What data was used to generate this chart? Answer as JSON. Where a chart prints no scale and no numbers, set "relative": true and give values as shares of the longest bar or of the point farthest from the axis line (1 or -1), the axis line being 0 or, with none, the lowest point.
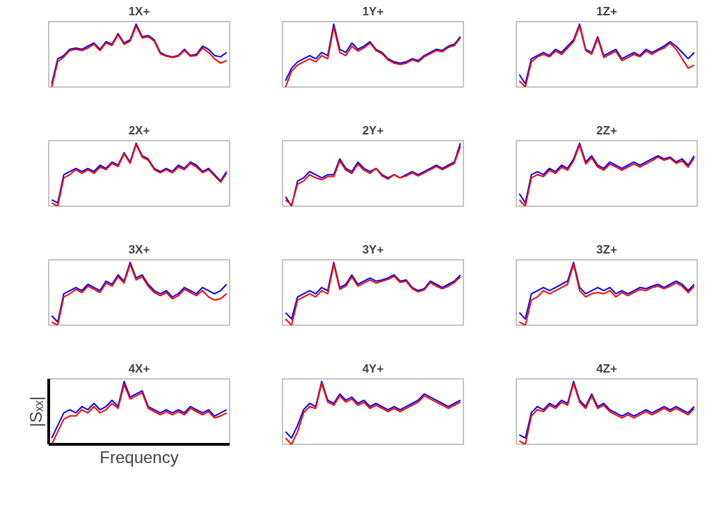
{
  "chart_data": [
    {
      "type": "line",
      "title": "1X+",
      "relative": true,
      "categories": [
        null,
        null,
        null,
        null,
        null,
        null,
        null,
        null,
        null,
        null,
        null,
        null,
        null,
        null,
        null,
        null,
        null,
        null,
        null,
        null,
        null,
        null,
        null,
        null,
        null,
        null,
        null,
        null,
        null,
        null
      ],
      "series": [
        {
          "color": "#0000ff",
          "values": [
            0.05,
            0.45,
            0.5,
            0.6,
            0.62,
            0.6,
            0.65,
            0.7,
            0.6,
            0.72,
            0.68,
            0.85,
            0.7,
            0.75,
            1.0,
            0.8,
            0.82,
            0.75,
            0.55,
            0.5,
            0.48,
            0.5,
            0.6,
            0.5,
            0.52,
            0.65,
            0.6,
            0.5,
            0.48,
            0.55
          ]
        },
        {
          "color": "#ff0000",
          "values": [
            0,
            0.4,
            0.48,
            0.58,
            0.6,
            0.58,
            0.62,
            0.68,
            0.58,
            0.7,
            0.66,
            0.83,
            0.68,
            0.73,
            0.97,
            0.78,
            0.8,
            0.73,
            0.53,
            0.49,
            0.47,
            0.49,
            0.58,
            0.49,
            0.5,
            0.62,
            0.55,
            0.45,
            0.38,
            0.42
          ]
        }
      ]
    },
    {
      "type": "line",
      "title": "1Y+",
      "relative": true,
      "categories": [
        null,
        null,
        null,
        null,
        null,
        null,
        null,
        null,
        null,
        null,
        null,
        null,
        null,
        null,
        null,
        null,
        null,
        null,
        null,
        null,
        null,
        null,
        null,
        null,
        null,
        null,
        null,
        null,
        null,
        null
      ],
      "series": [
        {
          "color": "#0000ff",
          "values": [
            0.1,
            0.3,
            0.4,
            0.45,
            0.5,
            0.45,
            0.55,
            0.5,
            1.0,
            0.6,
            0.55,
            0.7,
            0.6,
            0.65,
            0.72,
            0.6,
            0.55,
            0.45,
            0.4,
            0.38,
            0.4,
            0.45,
            0.42,
            0.5,
            0.55,
            0.6,
            0.58,
            0.65,
            0.68,
            0.8
          ]
        },
        {
          "color": "#ff0000",
          "values": [
            0,
            0.25,
            0.35,
            0.4,
            0.45,
            0.4,
            0.5,
            0.45,
            0.95,
            0.55,
            0.5,
            0.65,
            0.57,
            0.62,
            0.7,
            0.58,
            0.53,
            0.43,
            0.38,
            0.36,
            0.38,
            0.43,
            0.4,
            0.48,
            0.53,
            0.58,
            0.56,
            0.63,
            0.66,
            0.78
          ]
        }
      ]
    },
    {
      "type": "line",
      "title": "1Z+",
      "relative": true,
      "categories": [
        null,
        null,
        null,
        null,
        null,
        null,
        null,
        null,
        null,
        null,
        null,
        null,
        null,
        null,
        null,
        null,
        null,
        null,
        null,
        null,
        null,
        null,
        null,
        null,
        null,
        null,
        null,
        null,
        null,
        null
      ],
      "series": [
        {
          "color": "#0000ff",
          "values": [
            0.2,
            0.05,
            0.45,
            0.5,
            0.55,
            0.5,
            0.6,
            0.55,
            0.65,
            0.75,
            1.0,
            0.6,
            0.55,
            0.8,
            0.5,
            0.55,
            0.6,
            0.45,
            0.5,
            0.55,
            0.5,
            0.6,
            0.55,
            0.6,
            0.65,
            0.72,
            0.65,
            0.55,
            0.45,
            0.55
          ]
        },
        {
          "color": "#ff0000",
          "values": [
            0.1,
            0,
            0.4,
            0.48,
            0.52,
            0.48,
            0.57,
            0.52,
            0.62,
            0.72,
            0.97,
            0.58,
            0.52,
            0.77,
            0.47,
            0.52,
            0.57,
            0.42,
            0.47,
            0.52,
            0.48,
            0.57,
            0.52,
            0.58,
            0.62,
            0.7,
            0.6,
            0.45,
            0.3,
            0.35
          ]
        }
      ]
    },
    {
      "type": "line",
      "title": "2X+",
      "relative": true,
      "categories": [
        null,
        null,
        null,
        null,
        null,
        null,
        null,
        null,
        null,
        null,
        null,
        null,
        null,
        null,
        null,
        null,
        null,
        null,
        null,
        null,
        null,
        null,
        null,
        null,
        null,
        null,
        null,
        null,
        null,
        null
      ],
      "series": [
        {
          "color": "#0000ff",
          "values": [
            0.1,
            0.05,
            0.5,
            0.55,
            0.6,
            0.55,
            0.6,
            0.55,
            0.65,
            0.6,
            0.7,
            0.65,
            0.85,
            0.7,
            1.0,
            0.8,
            0.75,
            0.6,
            0.55,
            0.6,
            0.55,
            0.65,
            0.6,
            0.7,
            0.65,
            0.55,
            0.6,
            0.5,
            0.4,
            0.55
          ]
        },
        {
          "color": "#ff0000",
          "values": [
            0.05,
            0,
            0.45,
            0.5,
            0.58,
            0.52,
            0.58,
            0.52,
            0.62,
            0.58,
            0.68,
            0.63,
            0.83,
            0.68,
            0.98,
            0.78,
            0.73,
            0.58,
            0.53,
            0.58,
            0.53,
            0.62,
            0.58,
            0.68,
            0.62,
            0.53,
            0.58,
            0.48,
            0.38,
            0.52
          ]
        }
      ]
    },
    {
      "type": "line",
      "title": "2Y+",
      "relative": true,
      "categories": [
        null,
        null,
        null,
        null,
        null,
        null,
        null,
        null,
        null,
        null,
        null,
        null,
        null,
        null,
        null,
        null,
        null,
        null,
        null,
        null,
        null,
        null,
        null,
        null,
        null,
        null,
        null,
        null,
        null,
        null
      ],
      "series": [
        {
          "color": "#0000ff",
          "values": [
            0.15,
            0,
            0.4,
            0.45,
            0.55,
            0.5,
            0.45,
            0.5,
            0.5,
            0.75,
            0.6,
            0.55,
            0.7,
            0.6,
            0.55,
            0.6,
            0.5,
            0.45,
            0.5,
            0.45,
            0.5,
            0.55,
            0.5,
            0.55,
            0.6,
            0.65,
            0.6,
            0.65,
            0.7,
            1.0
          ]
        },
        {
          "color": "#ff0000",
          "values": [
            0.1,
            0.02,
            0.35,
            0.4,
            0.5,
            0.45,
            0.42,
            0.47,
            0.47,
            0.72,
            0.57,
            0.52,
            0.67,
            0.57,
            0.52,
            0.6,
            0.48,
            0.43,
            0.5,
            0.45,
            0.48,
            0.53,
            0.48,
            0.53,
            0.58,
            0.63,
            0.58,
            0.63,
            0.68,
            0.95
          ]
        }
      ]
    },
    {
      "type": "line",
      "title": "2Z+",
      "relative": true,
      "categories": [
        null,
        null,
        null,
        null,
        null,
        null,
        null,
        null,
        null,
        null,
        null,
        null,
        null,
        null,
        null,
        null,
        null,
        null,
        null,
        null,
        null,
        null,
        null,
        null,
        null,
        null,
        null,
        null,
        null,
        null
      ],
      "series": [
        {
          "color": "#0000ff",
          "values": [
            0.2,
            0.05,
            0.5,
            0.55,
            0.5,
            0.6,
            0.55,
            0.65,
            0.6,
            0.75,
            1.0,
            0.7,
            0.8,
            0.65,
            0.6,
            0.7,
            0.65,
            0.6,
            0.65,
            0.7,
            0.65,
            0.7,
            0.75,
            0.8,
            0.75,
            0.78,
            0.7,
            0.75,
            0.65,
            0.8
          ]
        },
        {
          "color": "#ff0000",
          "values": [
            0.1,
            0,
            0.45,
            0.5,
            0.47,
            0.57,
            0.52,
            0.62,
            0.57,
            0.72,
            0.97,
            0.67,
            0.77,
            0.62,
            0.57,
            0.67,
            0.62,
            0.57,
            0.62,
            0.67,
            0.62,
            0.67,
            0.72,
            0.78,
            0.73,
            0.76,
            0.68,
            0.72,
            0.62,
            0.77
          ]
        }
      ]
    },
    {
      "type": "line",
      "title": "3X+",
      "relative": true,
      "categories": [
        null,
        null,
        null,
        null,
        null,
        null,
        null,
        null,
        null,
        null,
        null,
        null,
        null,
        null,
        null,
        null,
        null,
        null,
        null,
        null,
        null,
        null,
        null,
        null,
        null,
        null,
        null,
        null,
        null,
        null
      ],
      "series": [
        {
          "color": "#0000ff",
          "values": [
            0.15,
            0.05,
            0.5,
            0.55,
            0.6,
            0.55,
            0.65,
            0.6,
            0.55,
            0.7,
            0.65,
            0.8,
            0.7,
            1.0,
            0.75,
            0.8,
            0.65,
            0.55,
            0.5,
            0.55,
            0.45,
            0.5,
            0.6,
            0.55,
            0.5,
            0.6,
            0.55,
            0.5,
            0.55,
            0.65
          ]
        },
        {
          "color": "#ff0000",
          "values": [
            0.05,
            0,
            0.45,
            0.5,
            0.57,
            0.52,
            0.62,
            0.57,
            0.52,
            0.67,
            0.62,
            0.77,
            0.67,
            0.97,
            0.72,
            0.77,
            0.62,
            0.52,
            0.47,
            0.52,
            0.42,
            0.47,
            0.57,
            0.52,
            0.47,
            0.55,
            0.45,
            0.4,
            0.42,
            0.5
          ]
        }
      ]
    },
    {
      "type": "line",
      "title": "3Y+",
      "relative": true,
      "categories": [
        null,
        null,
        null,
        null,
        null,
        null,
        null,
        null,
        null,
        null,
        null,
        null,
        null,
        null,
        null,
        null,
        null,
        null,
        null,
        null,
        null,
        null,
        null,
        null,
        null,
        null,
        null,
        null,
        null,
        null
      ],
      "series": [
        {
          "color": "#0000ff",
          "values": [
            0.2,
            0.1,
            0.45,
            0.5,
            0.55,
            0.5,
            0.6,
            0.55,
            1.0,
            0.6,
            0.65,
            0.8,
            0.65,
            0.7,
            0.75,
            0.7,
            0.72,
            0.75,
            0.8,
            0.7,
            0.72,
            0.6,
            0.55,
            0.58,
            0.7,
            0.65,
            0.6,
            0.65,
            0.7,
            0.8
          ]
        },
        {
          "color": "#ff0000",
          "values": [
            0.1,
            0,
            0.4,
            0.45,
            0.5,
            0.45,
            0.55,
            0.5,
            0.97,
            0.57,
            0.62,
            0.77,
            0.62,
            0.67,
            0.72,
            0.67,
            0.7,
            0.73,
            0.78,
            0.68,
            0.7,
            0.58,
            0.53,
            0.56,
            0.68,
            0.62,
            0.58,
            0.62,
            0.68,
            0.77
          ]
        }
      ]
    },
    {
      "type": "line",
      "title": "3Z+",
      "relative": true,
      "categories": [
        null,
        null,
        null,
        null,
        null,
        null,
        null,
        null,
        null,
        null,
        null,
        null,
        null,
        null,
        null,
        null,
        null,
        null,
        null,
        null,
        null,
        null,
        null,
        null,
        null,
        null,
        null,
        null,
        null,
        null
      ],
      "series": [
        {
          "color": "#0000ff",
          "values": [
            0.2,
            0.1,
            0.5,
            0.55,
            0.6,
            0.55,
            0.6,
            0.65,
            0.7,
            1.0,
            0.6,
            0.5,
            0.55,
            0.6,
            0.55,
            0.6,
            0.5,
            0.55,
            0.5,
            0.55,
            0.6,
            0.58,
            0.62,
            0.65,
            0.6,
            0.65,
            0.7,
            0.65,
            0.55,
            0.65
          ]
        },
        {
          "color": "#ff0000",
          "values": [
            0.05,
            0,
            0.4,
            0.45,
            0.55,
            0.5,
            0.55,
            0.6,
            0.65,
            0.97,
            0.55,
            0.45,
            0.5,
            0.52,
            0.5,
            0.55,
            0.45,
            0.52,
            0.47,
            0.52,
            0.57,
            0.55,
            0.6,
            0.62,
            0.58,
            0.62,
            0.67,
            0.62,
            0.52,
            0.62
          ]
        }
      ]
    },
    {
      "type": "line",
      "title": "4X+",
      "xlabel": "Frequency",
      "ylabel": "|Sₓₓ|",
      "relative": true,
      "categories": [
        null,
        null,
        null,
        null,
        null,
        null,
        null,
        null,
        null,
        null,
        null,
        null,
        null,
        null,
        null,
        null,
        null,
        null,
        null,
        null,
        null,
        null,
        null,
        null,
        null,
        null,
        null,
        null,
        null,
        null
      ],
      "series": [
        {
          "color": "#0000ff",
          "values": [
            0.1,
            0.3,
            0.5,
            0.55,
            0.5,
            0.6,
            0.55,
            0.65,
            0.55,
            0.6,
            0.7,
            0.6,
            1.0,
            0.75,
            0.8,
            0.85,
            0.6,
            0.55,
            0.5,
            0.55,
            0.5,
            0.55,
            0.5,
            0.6,
            0.55,
            0.5,
            0.55,
            0.45,
            0.5,
            0.55
          ]
        },
        {
          "color": "#ff0000",
          "values": [
            0,
            0.2,
            0.4,
            0.45,
            0.45,
            0.55,
            0.5,
            0.6,
            0.5,
            0.55,
            0.65,
            0.57,
            0.95,
            0.72,
            0.77,
            0.82,
            0.57,
            0.52,
            0.47,
            0.52,
            0.47,
            0.52,
            0.47,
            0.57,
            0.52,
            0.47,
            0.52,
            0.42,
            0.45,
            0.5
          ]
        }
      ]
    },
    {
      "type": "line",
      "title": "4Y+",
      "relative": true,
      "categories": [
        null,
        null,
        null,
        null,
        null,
        null,
        null,
        null,
        null,
        null,
        null,
        null,
        null,
        null,
        null,
        null,
        null,
        null,
        null,
        null,
        null,
        null,
        null,
        null,
        null,
        null,
        null,
        null,
        null,
        null
      ],
      "series": [
        {
          "color": "#0000ff",
          "values": [
            0.2,
            0.1,
            0.3,
            0.55,
            0.65,
            0.6,
            1.0,
            0.7,
            0.65,
            0.8,
            0.7,
            0.75,
            0.65,
            0.7,
            0.6,
            0.65,
            0.6,
            0.55,
            0.6,
            0.55,
            0.6,
            0.65,
            0.7,
            0.8,
            0.75,
            0.7,
            0.65,
            0.6,
            0.65,
            0.7
          ]
        },
        {
          "color": "#ff0000",
          "values": [
            0.1,
            0,
            0.2,
            0.5,
            0.6,
            0.57,
            0.97,
            0.67,
            0.62,
            0.77,
            0.67,
            0.72,
            0.62,
            0.67,
            0.57,
            0.62,
            0.57,
            0.52,
            0.57,
            0.52,
            0.57,
            0.62,
            0.67,
            0.77,
            0.72,
            0.67,
            0.62,
            0.57,
            0.62,
            0.67
          ]
        }
      ]
    },
    {
      "type": "line",
      "title": "4Z+",
      "relative": true,
      "categories": [
        null,
        null,
        null,
        null,
        null,
        null,
        null,
        null,
        null,
        null,
        null,
        null,
        null,
        null,
        null,
        null,
        null,
        null,
        null,
        null,
        null,
        null,
        null,
        null,
        null,
        null,
        null,
        null,
        null,
        null
      ],
      "series": [
        {
          "color": "#0000ff",
          "values": [
            0.15,
            0.1,
            0.5,
            0.6,
            0.55,
            0.65,
            0.6,
            0.7,
            0.65,
            1.0,
            0.7,
            0.6,
            0.8,
            0.6,
            0.65,
            0.55,
            0.5,
            0.45,
            0.5,
            0.45,
            0.5,
            0.55,
            0.5,
            0.55,
            0.6,
            0.55,
            0.6,
            0.55,
            0.5,
            0.6
          ]
        },
        {
          "color": "#ff0000",
          "values": [
            0.05,
            0,
            0.45,
            0.55,
            0.52,
            0.62,
            0.57,
            0.67,
            0.62,
            0.97,
            0.67,
            0.57,
            0.77,
            0.57,
            0.62,
            0.52,
            0.47,
            0.42,
            0.47,
            0.42,
            0.47,
            0.52,
            0.47,
            0.52,
            0.57,
            0.52,
            0.57,
            0.52,
            0.47,
            0.57
          ]
        }
      ]
    }
  ]
}
